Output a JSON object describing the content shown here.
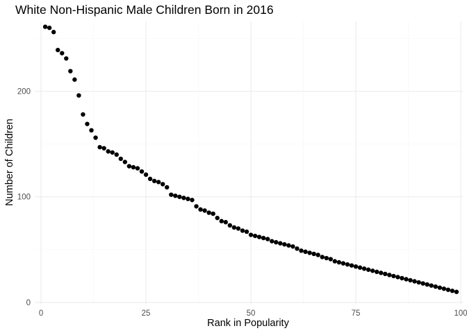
{
  "chart_data": {
    "type": "scatter",
    "title": "White Non-Hispanic Male Children Born in 2016",
    "xlabel": "Rank in Popularity",
    "ylabel": "Number of Children",
    "xlim": [
      -1.5,
      100.5
    ],
    "ylim": [
      -2,
      266
    ],
    "x_ticks": [
      0,
      25,
      50,
      75,
      100
    ],
    "y_ticks": [
      0,
      100,
      200
    ],
    "x_tick_labels": [
      "0",
      "25",
      "50",
      "75",
      "100"
    ],
    "y_tick_labels": [
      "0",
      "100",
      "200"
    ],
    "grid": true,
    "legend": "none",
    "point_color": "#000000",
    "x": [
      1,
      2,
      3,
      4,
      5,
      6,
      7,
      8,
      9,
      10,
      11,
      12,
      13,
      14,
      15,
      16,
      17,
      18,
      19,
      20,
      21,
      22,
      23,
      24,
      25,
      26,
      27,
      28,
      29,
      30,
      31,
      32,
      33,
      34,
      35,
      36,
      37,
      38,
      39,
      40,
      41,
      42,
      43,
      44,
      45,
      46,
      47,
      48,
      49,
      50,
      51,
      52,
      53,
      54,
      55,
      56,
      57,
      58,
      59,
      60,
      61,
      62,
      63,
      64,
      65,
      66,
      67,
      68,
      69,
      70,
      71,
      72,
      73,
      74,
      75,
      76,
      77,
      78,
      79,
      80,
      81,
      82,
      83,
      84,
      85,
      86,
      87,
      88,
      89,
      90,
      91,
      92,
      93,
      94,
      95,
      96,
      97,
      98,
      99
    ],
    "y": [
      261,
      260,
      256,
      239,
      236,
      231,
      219,
      211,
      196,
      178,
      169,
      163,
      156,
      147,
      146,
      143,
      142,
      140,
      136,
      133,
      129,
      128,
      127,
      124,
      121,
      117,
      115,
      114,
      112,
      109,
      102,
      101,
      100,
      99,
      98,
      97,
      91,
      88,
      87,
      85,
      84,
      80,
      77,
      76,
      73,
      71,
      70,
      68,
      67,
      64,
      63,
      62,
      61,
      60,
      58,
      57,
      56,
      55,
      54,
      53,
      51,
      49,
      48,
      47,
      46,
      45,
      43,
      42,
      41,
      39,
      38,
      37,
      36,
      35,
      34,
      33,
      32,
      31,
      30,
      29,
      28,
      27,
      26,
      25,
      24,
      23,
      22,
      21,
      20,
      19,
      18,
      17,
      16,
      15,
      14,
      13,
      12,
      11,
      10
    ]
  }
}
